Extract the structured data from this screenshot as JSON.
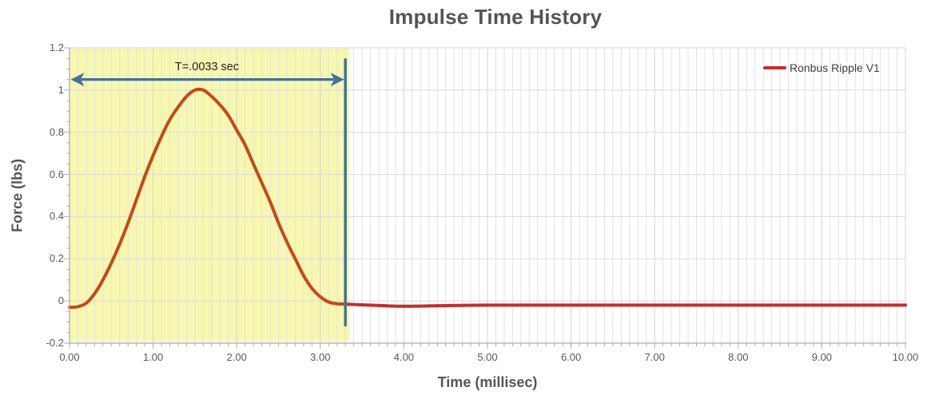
{
  "title": {
    "text": "Impulse Time History",
    "color": "#545454"
  },
  "axes": {
    "x": {
      "label": "Time (millisec)",
      "ticks": [
        "0.00",
        "1.00",
        "2.00",
        "3.00",
        "4.00",
        "5.00",
        "6.00",
        "7.00",
        "8.00",
        "9.00",
        "10.00"
      ]
    },
    "y": {
      "label": "Force (lbs)",
      "ticks": [
        "1.2",
        "1",
        "0.8",
        "0.6",
        "0.4",
        "0.2",
        "0",
        "-0.2"
      ]
    }
  },
  "legend": {
    "label": "Ronbus Ripple V1",
    "color": "#C12E2E"
  },
  "annotation": {
    "text": "T=.0033 sec"
  },
  "colors": {
    "grid_minor": "#E3E3E3",
    "grid_major": "#D4D4D4",
    "grid_horizontal": "#DADADA",
    "axis_line": "#ACACAC",
    "text_gray": "#595959"
  },
  "chart_data": {
    "type": "line",
    "title": "Impulse Time History",
    "xlabel": "Time (millisec)",
    "ylabel": "Force (lbs)",
    "xlim": [
      0,
      10
    ],
    "ylim": [
      -0.2,
      1.2
    ],
    "x_tick_step": 1.0,
    "x_minor_step": 0.1,
    "y_tick_step": 0.2,
    "y_minor_step": 0.05,
    "grid": "on",
    "legend_position": "top-right-inside",
    "highlight_region": {
      "x_start": 0,
      "x_end": 3.35,
      "fill": "#F7F7B0",
      "note": "impulse duration band"
    },
    "duration_annotation": {
      "label": "T=.0033 sec",
      "arrow_from_x": 0,
      "arrow_to_x": 3.3,
      "arrow_y": 1.05,
      "vline_x": 3.3,
      "vline_y_min": -0.12,
      "vline_y_max": 1.15,
      "color": "#41719C"
    },
    "series": [
      {
        "name": "Ronbus Ripple V1",
        "color": "#C12E2E",
        "color_in_band": "#C44A16",
        "points": [
          [
            0.0,
            -0.03
          ],
          [
            0.1,
            -0.027
          ],
          [
            0.2,
            -0.01
          ],
          [
            0.3,
            0.035
          ],
          [
            0.4,
            0.1
          ],
          [
            0.5,
            0.18
          ],
          [
            0.6,
            0.27
          ],
          [
            0.7,
            0.37
          ],
          [
            0.8,
            0.48
          ],
          [
            0.9,
            0.59
          ],
          [
            1.0,
            0.69
          ],
          [
            1.1,
            0.78
          ],
          [
            1.2,
            0.86
          ],
          [
            1.3,
            0.92
          ],
          [
            1.4,
            0.97
          ],
          [
            1.5,
            1.0
          ],
          [
            1.6,
            1.0
          ],
          [
            1.7,
            0.97
          ],
          [
            1.8,
            0.93
          ],
          [
            1.9,
            0.88
          ],
          [
            2.0,
            0.81
          ],
          [
            2.1,
            0.74
          ],
          [
            2.2,
            0.65
          ],
          [
            2.3,
            0.56
          ],
          [
            2.4,
            0.47
          ],
          [
            2.5,
            0.37
          ],
          [
            2.6,
            0.28
          ],
          [
            2.7,
            0.2
          ],
          [
            2.8,
            0.12
          ],
          [
            2.9,
            0.06
          ],
          [
            3.0,
            0.02
          ],
          [
            3.1,
            -0.005
          ],
          [
            3.2,
            -0.013
          ],
          [
            3.3,
            -0.015
          ],
          [
            3.6,
            -0.02
          ],
          [
            4.0,
            -0.025
          ],
          [
            4.5,
            -0.022
          ],
          [
            5.0,
            -0.02
          ],
          [
            5.5,
            -0.02
          ],
          [
            6.0,
            -0.02
          ],
          [
            6.5,
            -0.02
          ],
          [
            7.0,
            -0.02
          ],
          [
            7.5,
            -0.02
          ],
          [
            8.0,
            -0.02
          ],
          [
            8.5,
            -0.02
          ],
          [
            9.0,
            -0.02
          ],
          [
            9.5,
            -0.02
          ],
          [
            10.0,
            -0.02
          ]
        ]
      }
    ]
  }
}
